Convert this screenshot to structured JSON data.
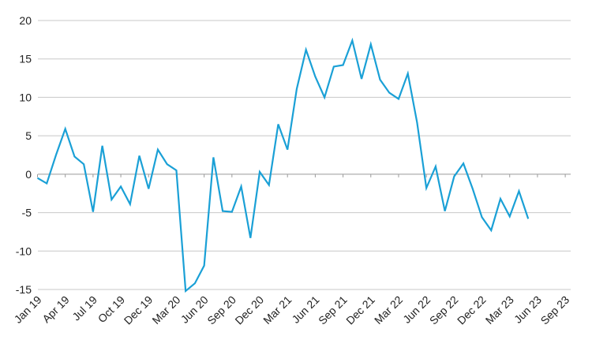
{
  "chart_data": {
    "type": "line",
    "title": "",
    "xlabel": "",
    "ylabel": "",
    "ylim": [
      -15,
      20
    ],
    "yticks": [
      20,
      15,
      10,
      5,
      0,
      -5,
      -10,
      -15
    ],
    "xtick_labels": [
      "Jan 19",
      "Apr 19",
      "Jul 19",
      "Oct 19",
      "Dec 19",
      "Mar 20",
      "Jun 20",
      "Sep 20",
      "Dec 20",
      "Mar 21",
      "Jun 21",
      "Sep 21",
      "Dec 21",
      "Mar 22",
      "Jun 22",
      "Sep 22",
      "Dec 22",
      "Mar 23",
      "Jun 23",
      "Sep 23"
    ],
    "grid": true,
    "legend": "none",
    "colors": {
      "line": "#1aa0d6",
      "grid": "#c8c8c8",
      "zero_axis": "#9a9a9a"
    },
    "series": [
      {
        "values": [
          -0.5,
          -1.2,
          2.5,
          5.9,
          2.3,
          1.3,
          -4.9,
          3.7,
          -3.3,
          -1.6,
          -3.9,
          2.4,
          -1.9,
          3.2,
          1.3,
          0.5,
          -15.2,
          -14.2,
          -11.9,
          2.2,
          -4.8,
          -4.9,
          -1.6,
          -8.3,
          0.3,
          -1.4,
          6.5,
          3.2,
          11.1,
          16.2,
          12.7,
          10.0,
          14.0,
          14.2,
          17.4,
          12.4,
          16.9,
          12.3,
          10.6,
          9.8,
          13.1,
          6.7,
          -1.8,
          1.0,
          -4.8,
          -0.3,
          1.4,
          -1.9,
          -5.6,
          -7.3,
          -3.2,
          -5.5,
          -2.2,
          -5.8
        ]
      }
    ]
  }
}
